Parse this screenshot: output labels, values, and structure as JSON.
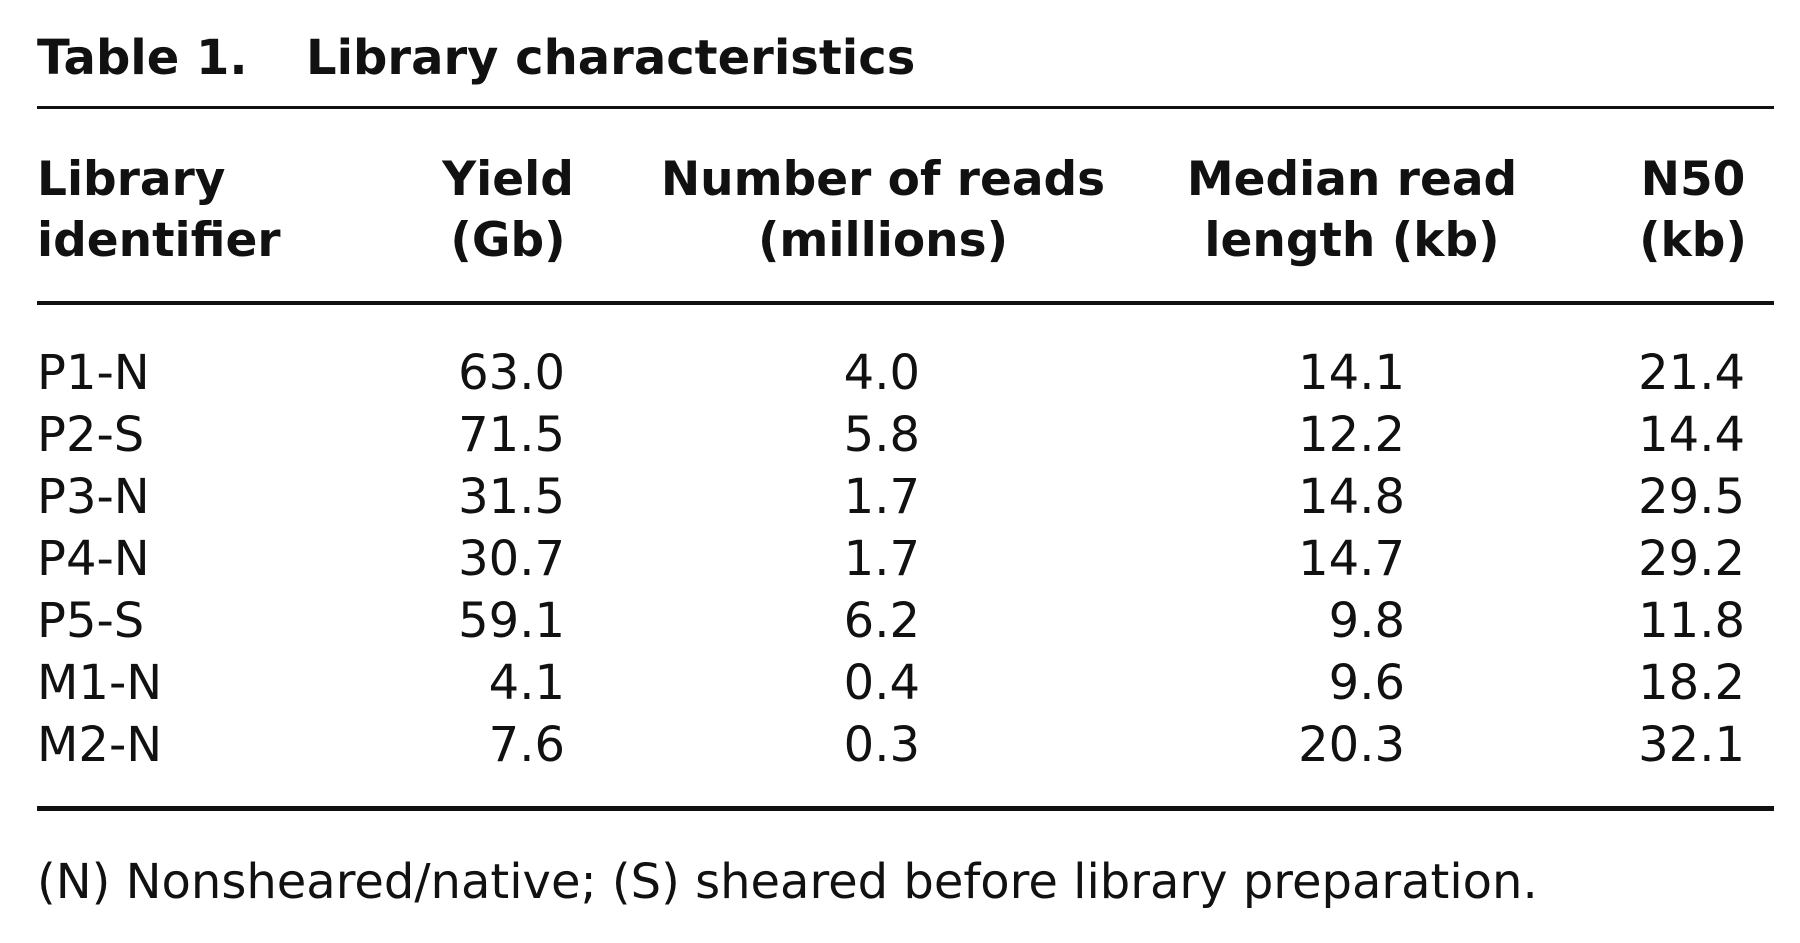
{
  "title": {
    "label": "Table 1.",
    "text": "Library characteristics"
  },
  "table": {
    "headers": [
      [
        "Library",
        "identifier"
      ],
      [
        "Yield",
        "(Gb)"
      ],
      [
        "Number of reads",
        "(millions)"
      ],
      [
        "Median read",
        "length (kb)"
      ],
      [
        "N50",
        "(kb)"
      ]
    ],
    "rows": [
      [
        "P1-N",
        "63.0",
        "4.0",
        "14.1",
        "21.4"
      ],
      [
        "P2-S",
        "71.5",
        "5.8",
        "12.2",
        "14.4"
      ],
      [
        "P3-N",
        "31.5",
        "1.7",
        "14.8",
        "29.5"
      ],
      [
        "P4-N",
        "30.7",
        "1.7",
        "14.7",
        "29.2"
      ],
      [
        "P5-S",
        "59.1",
        "6.2",
        "9.8",
        "11.8"
      ],
      [
        "M1-N",
        "4.1",
        "0.4",
        "9.6",
        "18.2"
      ],
      [
        "M2-N",
        "7.6",
        "0.3",
        "20.3",
        "32.1"
      ]
    ]
  },
  "footnote": "(N) Nonsheared/native; (S) sheared before library preparation."
}
